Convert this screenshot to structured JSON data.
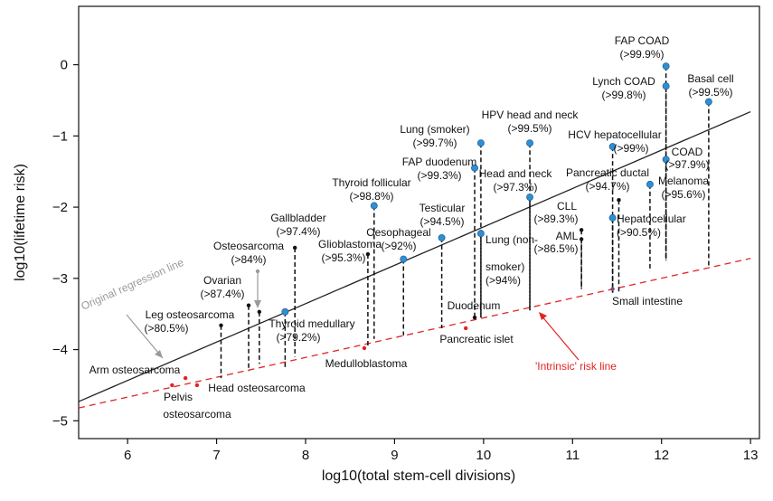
{
  "chart_data": {
    "type": "scatter",
    "xlabel": "log10(total stem-cell divisions)",
    "ylabel": "log10(lifetime risk)",
    "xlim": [
      5.45,
      13.1
    ],
    "ylim": [
      -5.25,
      0.82
    ],
    "xticks": [
      6,
      7,
      8,
      9,
      10,
      11,
      12,
      13
    ],
    "yticks": [
      0,
      -1,
      -2,
      -3,
      -4,
      -5
    ],
    "grid": false,
    "colors": {
      "blue": "#2f8fd4",
      "red": "#e02525",
      "black": "#111111",
      "grey": "#9a9a9a",
      "regression": "#222222"
    },
    "lines": [
      {
        "name": "Original regression line",
        "style": "solid",
        "color": "#222222",
        "points": [
          [
            5.45,
            -4.73
          ],
          [
            13.0,
            -0.66
          ]
        ]
      },
      {
        "name": "'Intrinsic' risk line",
        "style": "dashed",
        "color": "#e02525",
        "points": [
          [
            5.45,
            -4.82
          ],
          [
            13.0,
            -2.72
          ]
        ]
      }
    ],
    "points": [
      {
        "label": "FAP COAD",
        "pct": "(>99.9%)",
        "x": 12.05,
        "y": -0.02,
        "intrinsic_y": -2.75,
        "color": "blue"
      },
      {
        "label": "Lynch COAD",
        "pct": "(>99.8%)",
        "x": 12.05,
        "y": -0.3,
        "intrinsic_y": -2.75,
        "color": "blue"
      },
      {
        "label": "COAD",
        "pct": "(>97.9%)",
        "x": 12.05,
        "y": -1.33,
        "intrinsic_y": -2.75,
        "color": "blue"
      },
      {
        "label": "Basal cell",
        "pct": "(>99.5%)",
        "x": 12.53,
        "y": -0.52,
        "intrinsic_y": -2.82,
        "color": "blue"
      },
      {
        "label": "HPV head and neck",
        "pct": "(>99.5%)",
        "x": 10.52,
        "y": -1.1,
        "intrinsic_y": -3.45,
        "color": "blue"
      },
      {
        "label": "Head and neck",
        "pct": "(>97.3%)",
        "x": 10.52,
        "y": -1.86,
        "intrinsic_y": -3.45,
        "color": "blue"
      },
      {
        "label": "Lung (smoker)",
        "pct": "(>99.7%)",
        "x": 9.97,
        "y": -1.1,
        "intrinsic_y": -3.55,
        "color": "blue"
      },
      {
        "label": "Lung (non-smoker)",
        "pct": "(>94%)",
        "x": 9.97,
        "y": -2.37,
        "intrinsic_y": -3.55,
        "color": "blue"
      },
      {
        "label": "HCV hepatocellular",
        "pct": "(>99%)",
        "x": 11.45,
        "y": -1.15,
        "intrinsic_y": -3.2,
        "color": "blue"
      },
      {
        "label": "Hepatocellular",
        "pct": "(>90.5%)",
        "x": 11.45,
        "y": -2.15,
        "intrinsic_y": -3.2,
        "color": "blue"
      },
      {
        "label": "FAP duodenum",
        "pct": "(>99.3%)",
        "x": 9.9,
        "y": -1.45,
        "intrinsic_y": -3.55,
        "color": "blue"
      },
      {
        "label": "Duodenum",
        "pct": "",
        "x": 9.9,
        "y": -3.55,
        "intrinsic_y": -3.55,
        "color": "black"
      },
      {
        "label": "Thyroid follicular",
        "pct": "(>98.8%)",
        "x": 8.77,
        "y": -1.98,
        "intrinsic_y": -3.85,
        "color": "blue"
      },
      {
        "label": "Thyroid medullary",
        "pct": "(>79.2%)",
        "x": 7.77,
        "y": -3.47,
        "intrinsic_y": -4.25,
        "color": "blue"
      },
      {
        "label": "Testicular",
        "pct": "(>94.5%)",
        "x": 9.53,
        "y": -2.43,
        "intrinsic_y": -3.7,
        "color": "blue"
      },
      {
        "label": "Oesophageal",
        "pct": "(>92%)",
        "x": 9.1,
        "y": -2.73,
        "intrinsic_y": -3.8,
        "color": "blue"
      },
      {
        "label": "Melanoma",
        "pct": "(>95.6%)",
        "x": 11.87,
        "y": -1.68,
        "intrinsic_y": -2.9,
        "color": "blue"
      },
      {
        "label": "Pancreatic ductal",
        "pct": "(>94.7%)",
        "x": 11.52,
        "y": -1.9,
        "intrinsic_y": -3.2,
        "color": "black"
      },
      {
        "label": "CLL",
        "pct": "(>89.3%)",
        "x": 11.1,
        "y": -2.32,
        "intrinsic_y": -3.15,
        "color": "black"
      },
      {
        "label": "AML",
        "pct": "(>86.5%)",
        "x": 11.1,
        "y": -2.45,
        "intrinsic_y": -3.15,
        "color": "black"
      },
      {
        "label": "Small intestine",
        "pct": "",
        "x": 11.45,
        "y": -3.15,
        "intrinsic_y": -3.15,
        "color": "purple"
      },
      {
        "label": "Gallbladder",
        "pct": "(>97.4%)",
        "x": 7.88,
        "y": -2.57,
        "intrinsic_y": -4.1,
        "color": "black"
      },
      {
        "label": "Glioblastoma",
        "pct": "(>95.3%)",
        "x": 8.7,
        "y": -2.66,
        "intrinsic_y": -3.97,
        "color": "black"
      },
      {
        "label": "Medulloblastoma",
        "pct": "",
        "x": 8.66,
        "y": -3.98,
        "intrinsic_y": -3.98,
        "color": "red"
      },
      {
        "label": "Pancreatic islet",
        "pct": "",
        "x": 9.8,
        "y": -3.7,
        "intrinsic_y": -3.7,
        "color": "red"
      },
      {
        "label": "Osteosarcoma",
        "pct": "(>84%)",
        "x": 7.48,
        "y": -3.47,
        "intrinsic_y": -4.2,
        "color": "black"
      },
      {
        "label": "Ovarian",
        "pct": "(>87.4%)",
        "x": 7.36,
        "y": -3.38,
        "intrinsic_y": -4.3,
        "color": "black"
      },
      {
        "label": "Leg osteosarcoma",
        "pct": "(>80.5%)",
        "x": 7.05,
        "y": -3.66,
        "intrinsic_y": -4.4,
        "color": "black"
      },
      {
        "label": "Arm osteosarcoma",
        "pct": "",
        "x": 6.65,
        "y": -4.4,
        "intrinsic_y": -4.4,
        "color": "red"
      },
      {
        "label": "Pelvis osteosarcoma",
        "pct": "",
        "x": 6.5,
        "y": -4.5,
        "intrinsic_y": -4.5,
        "color": "red"
      },
      {
        "label": "Head osteosarcoma",
        "pct": "",
        "x": 6.78,
        "y": -4.5,
        "intrinsic_y": -4.5,
        "color": "red"
      }
    ],
    "annotations": [
      {
        "text": "Original regression line",
        "color": "grey"
      },
      {
        "text": "'Intrinsic' risk line",
        "color": "red"
      }
    ]
  }
}
